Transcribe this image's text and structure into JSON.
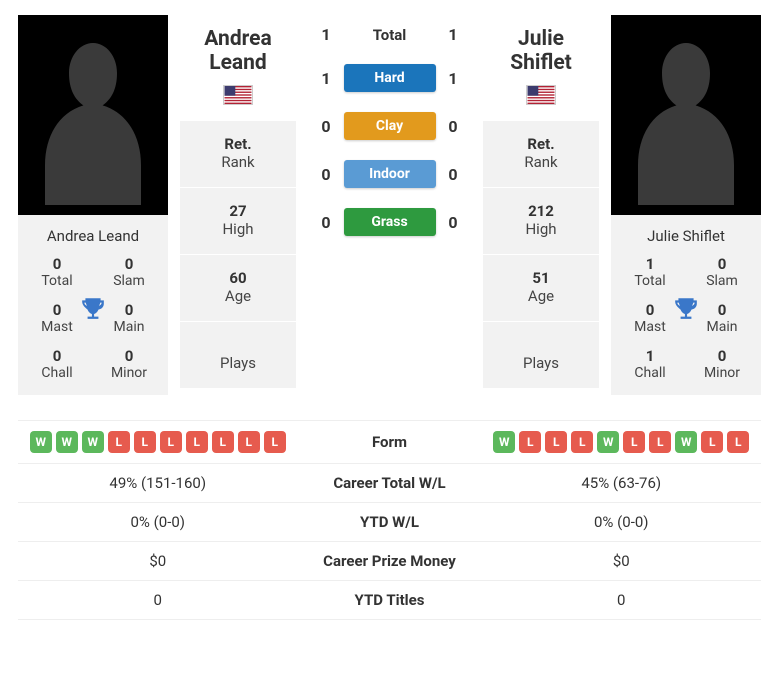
{
  "players": {
    "left": {
      "name": "Andrea Leand",
      "flag_country": "US",
      "titles": {
        "Total": "0",
        "Slam": "0",
        "Mast": "0",
        "Main": "0",
        "Chall": "0",
        "Minor": "0"
      },
      "stats": {
        "rank_val": "Ret.",
        "rank_lab": "Rank",
        "high_val": "27",
        "high_lab": "High",
        "age_val": "60",
        "age_lab": "Age",
        "plays_lab": "Plays"
      }
    },
    "right": {
      "name": "Julie Shiflet",
      "flag_country": "US",
      "titles": {
        "Total": "1",
        "Slam": "0",
        "Mast": "0",
        "Main": "0",
        "Chall": "1",
        "Minor": "0"
      },
      "stats": {
        "rank_val": "Ret.",
        "rank_lab": "Rank",
        "high_val": "212",
        "high_lab": "High",
        "age_val": "51",
        "age_lab": "Age",
        "plays_lab": "Plays"
      }
    }
  },
  "h2h": {
    "total_label": "Total",
    "rows": [
      {
        "left": "1",
        "mid": "Total",
        "right": "1",
        "type": "total"
      },
      {
        "left": "1",
        "mid": "Hard",
        "right": "1",
        "type": "hard"
      },
      {
        "left": "0",
        "mid": "Clay",
        "right": "0",
        "type": "clay"
      },
      {
        "left": "0",
        "mid": "Indoor",
        "right": "0",
        "type": "indoor"
      },
      {
        "left": "0",
        "mid": "Grass",
        "right": "0",
        "type": "grass"
      }
    ]
  },
  "cmp": {
    "rows": [
      {
        "label": "Form",
        "left_form": [
          "W",
          "W",
          "W",
          "L",
          "L",
          "L",
          "L",
          "L",
          "L",
          "L"
        ],
        "right_form": [
          "W",
          "L",
          "L",
          "L",
          "W",
          "L",
          "L",
          "W",
          "L",
          "L"
        ]
      },
      {
        "label": "Career Total W/L",
        "left": "49% (151-160)",
        "right": "45% (63-76)"
      },
      {
        "label": "YTD W/L",
        "left": "0% (0-0)",
        "right": "0% (0-0)"
      },
      {
        "label": "Career Prize Money",
        "left": "$0",
        "right": "$0"
      },
      {
        "label": "YTD Titles",
        "left": "0",
        "right": "0"
      }
    ]
  },
  "colors": {
    "win": "#5cb85c",
    "loss": "#e65b4e",
    "hard": "#1b75bb",
    "clay": "#e29a1d",
    "indoor": "#5a9bd4",
    "grass": "#2e9a3f"
  }
}
